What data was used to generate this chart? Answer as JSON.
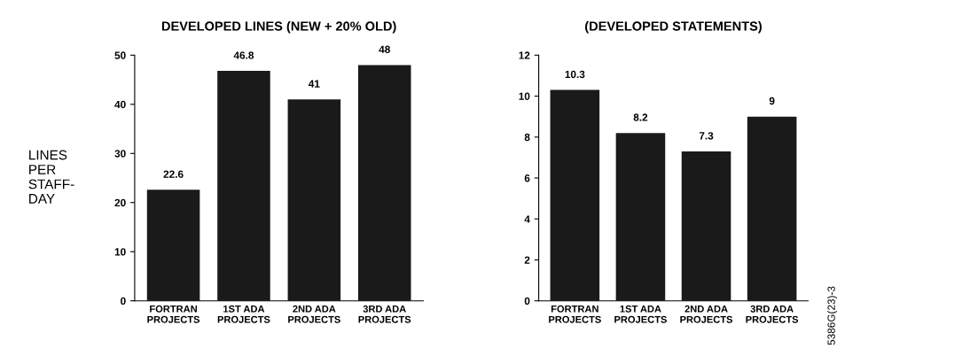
{
  "chart_data": [
    {
      "type": "bar",
      "title": "DEVELOPED LINES (NEW + 20% OLD)",
      "ylabel": "LINES\nPER\nSTAFF-\nDAY",
      "categories": [
        "FORTRAN\nPROJECTS",
        "1ST ADA\nPROJECTS",
        "2ND ADA\nPROJECTS",
        "3RD ADA\nPROJECTS"
      ],
      "values": [
        22.6,
        46.8,
        41,
        48
      ],
      "value_labels": [
        "22.6",
        "46.8",
        "41",
        "48"
      ],
      "color": "#1a1a1a",
      "ylim": [
        0,
        50
      ],
      "yticks": [
        0,
        10,
        20,
        30,
        40,
        50
      ],
      "grid": false,
      "legend": false
    },
    {
      "type": "bar",
      "title": "(DEVELOPED STATEMENTS)",
      "categories": [
        "FORTRAN\nPROJECTS",
        "1ST ADA\nPROJECTS",
        "2ND ADA\nPROJECTS",
        "3RD ADA\nPROJECTS"
      ],
      "values": [
        10.3,
        8.2,
        7.3,
        9
      ],
      "value_labels": [
        "10.3",
        "8.2",
        "7.3",
        "9"
      ],
      "color": "#1a1a1a",
      "ylim": [
        0,
        12
      ],
      "yticks": [
        0,
        2,
        4,
        6,
        8,
        10,
        12
      ],
      "grid": false,
      "legend": false,
      "annotations": [
        "5386G(23)-3"
      ]
    }
  ]
}
